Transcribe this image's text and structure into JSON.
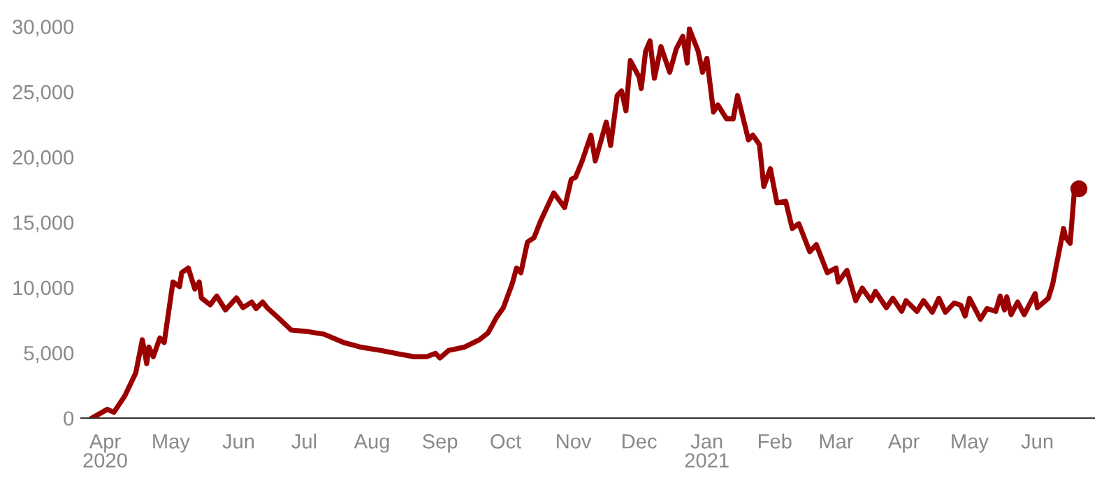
{
  "chart_data": {
    "type": "line",
    "xlim": [
      "2020-03-21",
      "2021-06-27"
    ],
    "ylim": [
      0,
      30000
    ],
    "yticks": [
      {
        "value": 0,
        "label": "0"
      },
      {
        "value": 5000,
        "label": "5,000"
      },
      {
        "value": 10000,
        "label": "10,000"
      },
      {
        "value": 15000,
        "label": "15,000"
      },
      {
        "value": 20000,
        "label": "20,000"
      },
      {
        "value": 25000,
        "label": "25,000"
      },
      {
        "value": 30000,
        "label": "30,000"
      }
    ],
    "xticks": [
      {
        "value": "2020-04-01",
        "label": "Apr\n2020"
      },
      {
        "value": "2020-05-01",
        "label": "May"
      },
      {
        "value": "2020-06-01",
        "label": "Jun"
      },
      {
        "value": "2020-07-01",
        "label": "Jul"
      },
      {
        "value": "2020-08-01",
        "label": "Aug"
      },
      {
        "value": "2020-09-01",
        "label": "Sep"
      },
      {
        "value": "2020-10-01",
        "label": "Oct"
      },
      {
        "value": "2020-11-01",
        "label": "Nov"
      },
      {
        "value": "2020-12-01",
        "label": "Dec"
      },
      {
        "value": "2021-01-01",
        "label": "Jan\n2021"
      },
      {
        "value": "2021-02-01",
        "label": "Feb"
      },
      {
        "value": "2021-03-01",
        "label": "Mar"
      },
      {
        "value": "2021-04-01",
        "label": "Apr"
      },
      {
        "value": "2021-05-01",
        "label": "May"
      },
      {
        "value": "2021-06-01",
        "label": "Jun"
      }
    ],
    "grid": false,
    "line_style": "solid",
    "series": [
      {
        "color": "#9b0000",
        "x": [
          "2020-03-26",
          "2020-04-02",
          "2020-04-05",
          "2020-04-10",
          "2020-04-15",
          "2020-04-18",
          "2020-04-20",
          "2020-04-21",
          "2020-04-23",
          "2020-04-26",
          "2020-04-28",
          "2020-05-02",
          "2020-05-05",
          "2020-05-06",
          "2020-05-09",
          "2020-05-12",
          "2020-05-14",
          "2020-05-15",
          "2020-05-19",
          "2020-05-22",
          "2020-05-26",
          "2020-05-31",
          "2020-06-03",
          "2020-06-07",
          "2020-06-09",
          "2020-06-12",
          "2020-06-14",
          "2020-06-19",
          "2020-06-25",
          "2020-07-02",
          "2020-07-10",
          "2020-07-19",
          "2020-07-27",
          "2020-08-05",
          "2020-08-14",
          "2020-08-20",
          "2020-08-26",
          "2020-08-30",
          "2020-09-01",
          "2020-09-05",
          "2020-09-12",
          "2020-09-19",
          "2020-09-23",
          "2020-09-27",
          "2020-09-30",
          "2020-10-04",
          "2020-10-06",
          "2020-10-08",
          "2020-10-11",
          "2020-10-14",
          "2020-10-17",
          "2020-10-20",
          "2020-10-23",
          "2020-10-28",
          "2020-10-31",
          "2020-11-02",
          "2020-11-05",
          "2020-11-09",
          "2020-11-11",
          "2020-11-16",
          "2020-11-18",
          "2020-11-21",
          "2020-11-23",
          "2020-11-25",
          "2020-11-27",
          "2020-12-01",
          "2020-12-02",
          "2020-12-04",
          "2020-12-06",
          "2020-12-08",
          "2020-12-11",
          "2020-12-15",
          "2020-12-18",
          "2020-12-21",
          "2020-12-23",
          "2020-12-24",
          "2020-12-28",
          "2020-12-30",
          "2021-01-01",
          "2021-01-04",
          "2021-01-06",
          "2021-01-10",
          "2021-01-13",
          "2021-01-15",
          "2021-01-20",
          "2021-01-22",
          "2021-01-25",
          "2021-01-27",
          "2021-01-30",
          "2021-02-02",
          "2021-02-06",
          "2021-02-09",
          "2021-02-12",
          "2021-02-17",
          "2021-02-20",
          "2021-02-25",
          "2021-03-01",
          "2021-03-02",
          "2021-03-06",
          "2021-03-10",
          "2021-03-13",
          "2021-03-17",
          "2021-03-19",
          "2021-03-24",
          "2021-03-27",
          "2021-03-31",
          "2021-04-02",
          "2021-04-07",
          "2021-04-10",
          "2021-04-14",
          "2021-04-17",
          "2021-04-20",
          "2021-04-24",
          "2021-04-27",
          "2021-04-29",
          "2021-05-01",
          "2021-05-06",
          "2021-05-09",
          "2021-05-13",
          "2021-05-15",
          "2021-05-17",
          "2021-05-18",
          "2021-05-20",
          "2021-05-23",
          "2021-05-26",
          "2021-05-31",
          "2021-06-01",
          "2021-06-06",
          "2021-06-08",
          "2021-06-13",
          "2021-06-14",
          "2021-06-16",
          "2021-06-18",
          "2021-06-20"
        ],
        "values": [
          0,
          670,
          440,
          1700,
          3460,
          6000,
          4180,
          5450,
          4700,
          6140,
          5790,
          10430,
          10070,
          11140,
          11500,
          9890,
          10430,
          9210,
          8680,
          9350,
          8290,
          9210,
          8460,
          8890,
          8390,
          8890,
          8460,
          7710,
          6750,
          6640,
          6430,
          5790,
          5430,
          5180,
          4890,
          4710,
          4710,
          4960,
          4610,
          5180,
          5430,
          6000,
          6530,
          7750,
          8460,
          10280,
          11500,
          11140,
          13490,
          13820,
          15100,
          16180,
          17250,
          16140,
          18290,
          18460,
          19710,
          21680,
          19710,
          22680,
          20890,
          24710,
          25070,
          23540,
          27390,
          26140,
          25250,
          28110,
          28900,
          26040,
          28460,
          26500,
          28290,
          29250,
          27210,
          29820,
          28110,
          26500,
          27570,
          23460,
          24000,
          22930,
          22930,
          24710,
          21320,
          21680,
          20960,
          17750,
          19110,
          16500,
          16610,
          14530,
          14890,
          12750,
          13290,
          11140,
          11500,
          10430,
          11320,
          9000,
          9960,
          9000,
          9710,
          8460,
          9180,
          8180,
          9000,
          8180,
          9000,
          8110,
          9180,
          8110,
          8820,
          8640,
          7820,
          9180,
          7570,
          8390,
          8180,
          9350,
          8290,
          9290,
          7930,
          8890,
          7930,
          9540,
          8460,
          9180,
          10250,
          14530,
          13820,
          13390,
          17570,
          17570
        ]
      },
      {
        "type": "scatter",
        "color": "#9b0000",
        "marker": "circle",
        "x": [
          "2021-06-20"
        ],
        "values": [
          17570
        ]
      }
    ]
  }
}
